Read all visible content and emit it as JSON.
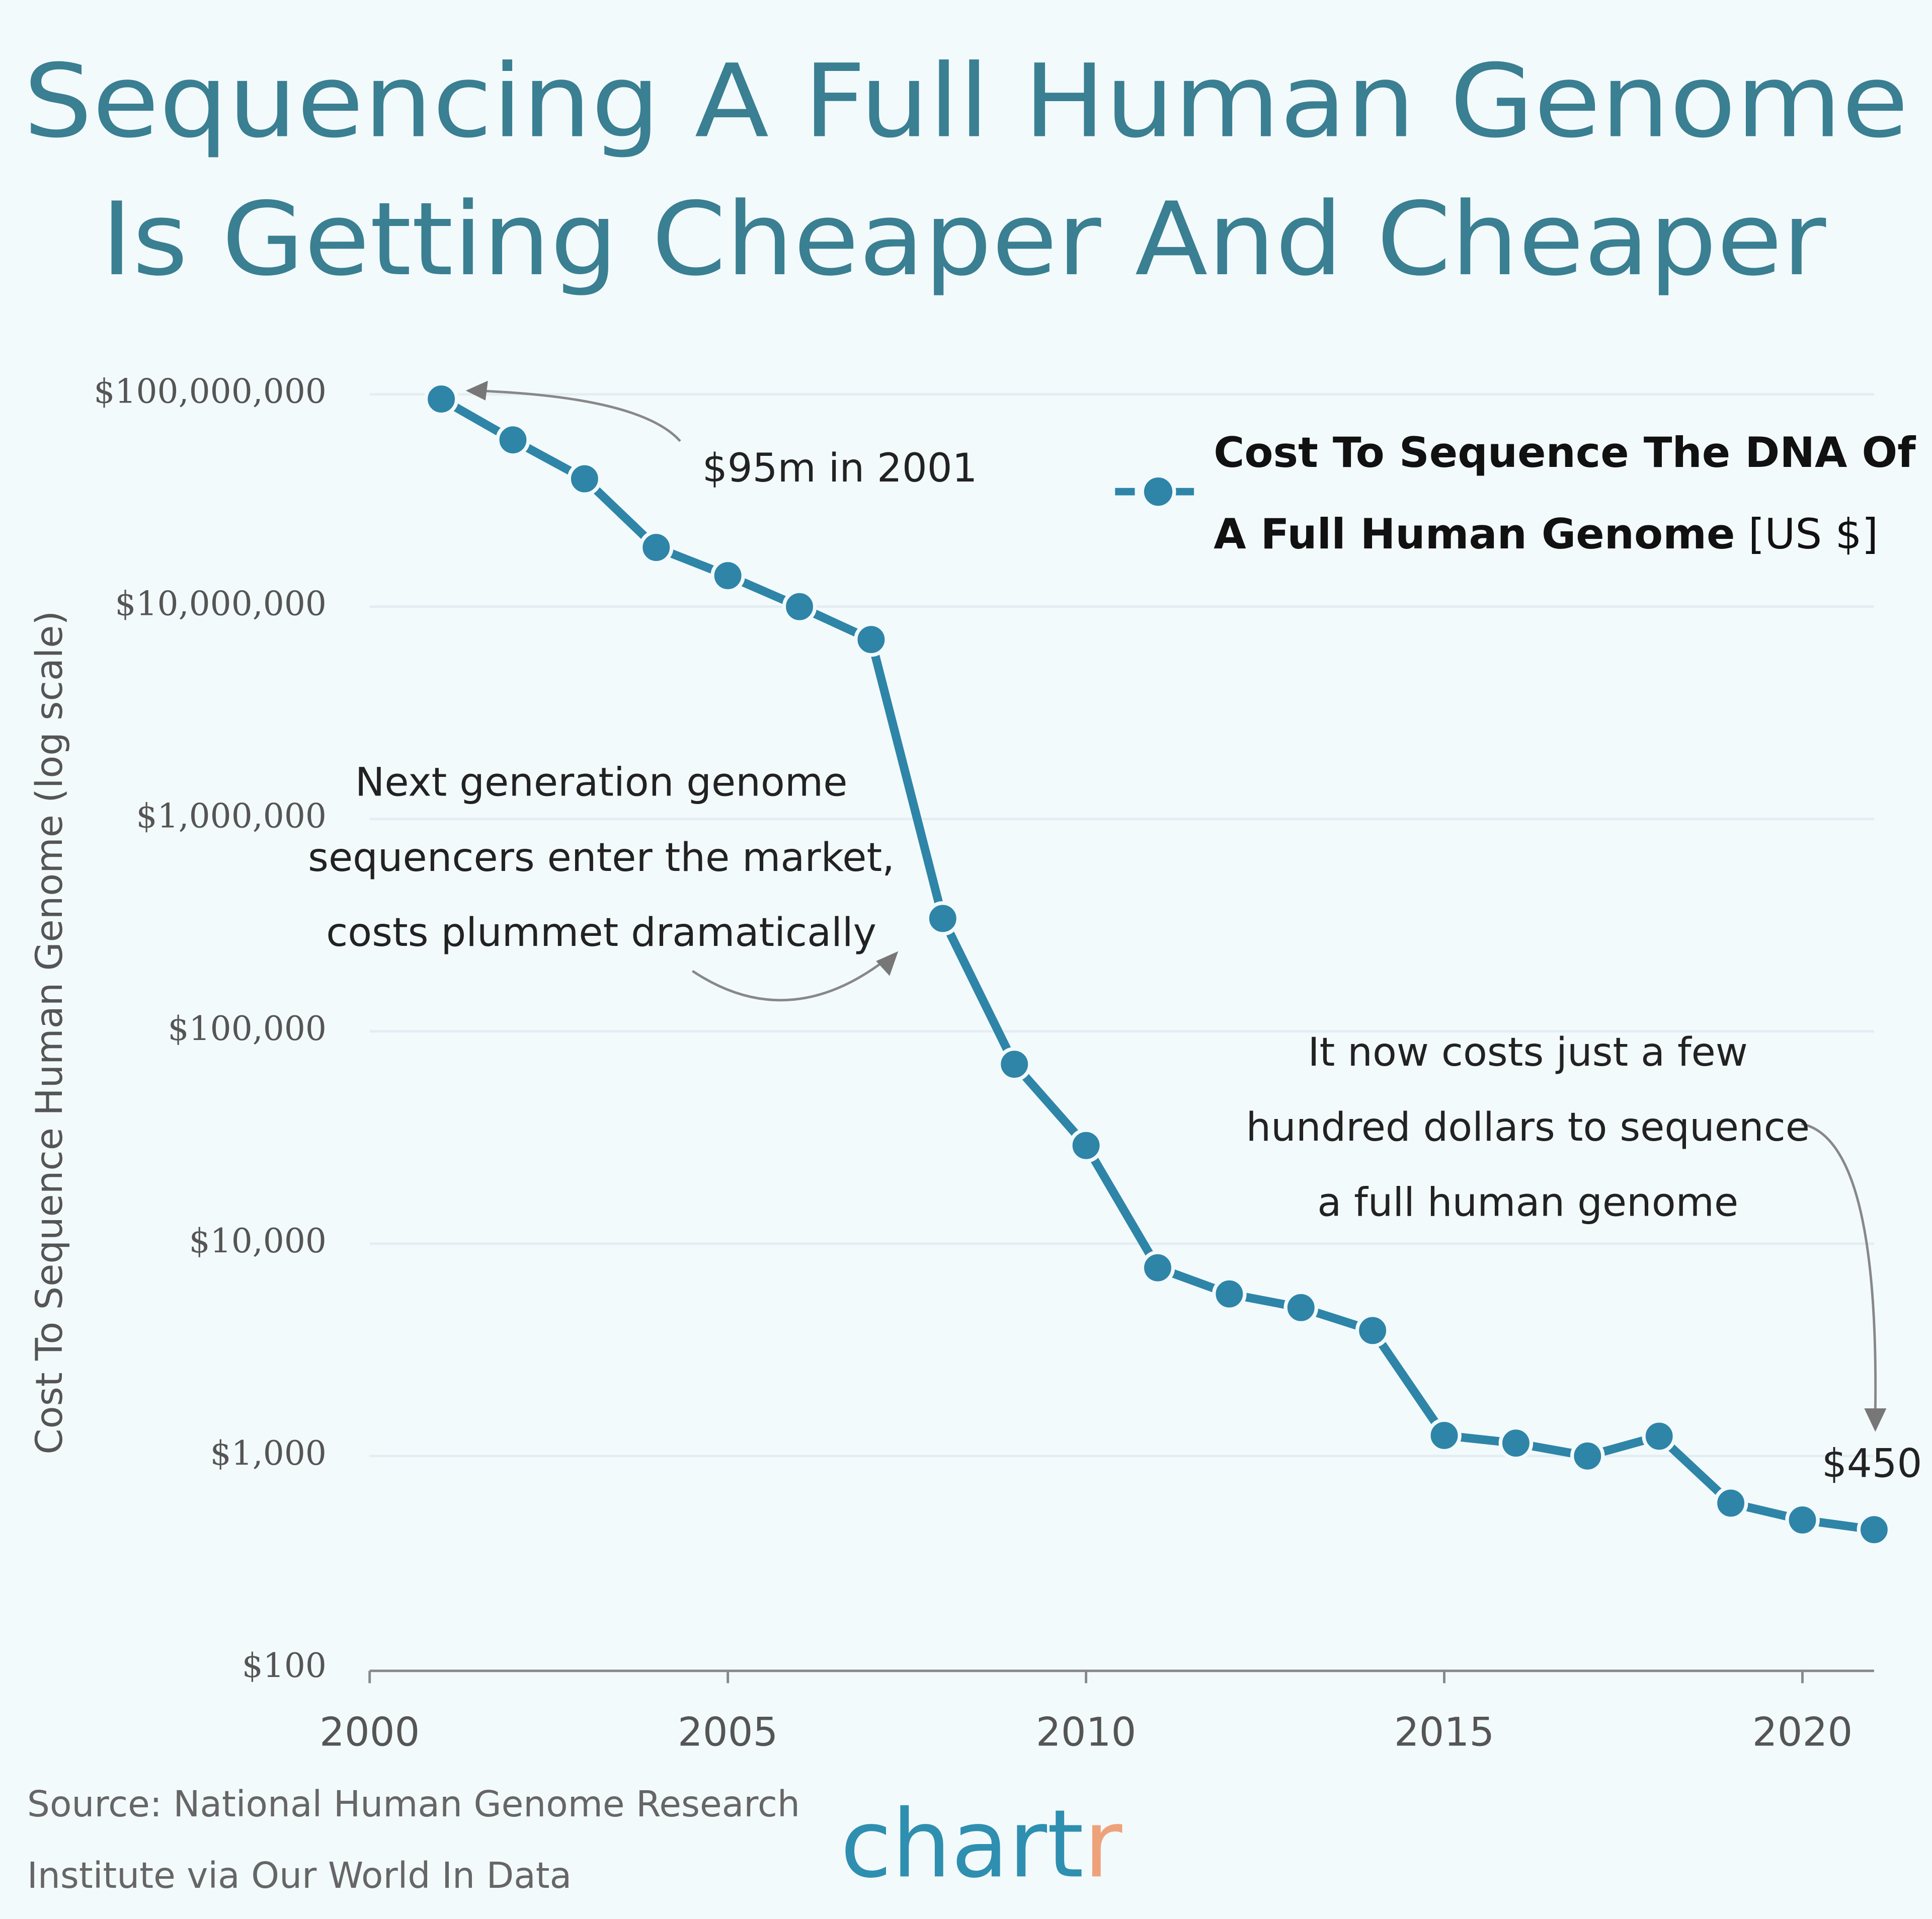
{
  "chart_data": {
    "type": "line",
    "title": [
      "Sequencing A Full Human Genome",
      "Is Getting Cheaper And Cheaper"
    ],
    "y_label": "Cost To Sequence Human Genome (log scale)",
    "x": [
      2001,
      2002,
      2003,
      2004,
      2005,
      2006,
      2007,
      2008,
      2009,
      2010,
      2011,
      2012,
      2013,
      2014,
      2015,
      2016,
      2017,
      2018,
      2019,
      2020,
      2021
    ],
    "series": [
      {
        "name": "Cost To Sequence The DNA Of A Full Human Genome",
        "color": "#2e85a8",
        "values": [
          95000000,
          61000000,
          40000000,
          19000000,
          14000000,
          10000000,
          7000000,
          340000,
          70000,
          29000,
          7700,
          5800,
          5000,
          3900,
          1250,
          1150,
          1000,
          1240,
          600,
          500,
          450
        ]
      }
    ],
    "legend_unit": "[US $]",
    "xlim": [
      2000,
      2021
    ],
    "xticks": [
      2000,
      2005,
      2010,
      2015,
      2020
    ],
    "ylim": [
      100,
      100000000
    ],
    "log_scale": true,
    "grid": true,
    "yticks": [
      {
        "value": 100,
        "label": "$100"
      },
      {
        "value": 1000,
        "label": "$1,000"
      },
      {
        "value": 10000,
        "label": "$10,000"
      },
      {
        "value": 100000,
        "label": "$100,000"
      },
      {
        "value": 1000000,
        "label": "$1,000,000"
      },
      {
        "value": 10000000,
        "label": "$10,000,000"
      },
      {
        "value": 100000000,
        "label": "$100,000,000"
      }
    ],
    "annotations": {
      "start": "$95m in 2001",
      "middle": [
        "Next generation genome",
        "sequencers enter the market,",
        "costs plummet dramatically"
      ],
      "end_note": [
        "It now costs just a few",
        "hundred dollars to sequence",
        "a full human genome"
      ],
      "end": "$450"
    },
    "source": "Source: National Human Genome Research Institute via Our World In Data",
    "logo": [
      "chart",
      "r"
    ]
  }
}
